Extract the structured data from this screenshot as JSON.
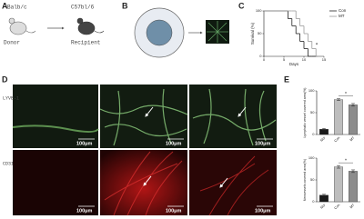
{
  "panels": {
    "a": {
      "label": "A",
      "donor_strain": "Balb/c",
      "recipient_strain": "C57bl/6",
      "donor": "Donor",
      "recipient": "Recipient"
    },
    "b": {
      "label": "B"
    },
    "c": {
      "label": "C"
    },
    "d": {
      "label": "D",
      "rows": [
        "LYVE-1",
        "CD31"
      ],
      "scale_bar": "100μm"
    },
    "e": {
      "label": "E"
    }
  },
  "chart_data": [
    {
      "type": "line",
      "step": true,
      "ylabel": "Survival (%)",
      "xlabel": "Days",
      "annotation": "*",
      "x": [
        0,
        6,
        7,
        8,
        9,
        10,
        11,
        12,
        13
      ],
      "series": [
        {
          "name": "Con",
          "color": "#222222",
          "values": [
            100,
            83,
            67,
            50,
            33,
            17,
            0,
            0,
            0
          ]
        },
        {
          "name": "MT",
          "color": "#9a9a9a",
          "values": [
            100,
            100,
            100,
            83,
            67,
            50,
            33,
            17,
            0
          ]
        }
      ],
      "xlim": [
        0,
        15
      ],
      "xticks": [
        0,
        5,
        10,
        15
      ],
      "ylim": [
        0,
        100
      ],
      "yticks": [
        0,
        50,
        100
      ],
      "legend": "upper-right"
    },
    {
      "type": "bar",
      "ylabel": "Lymphatic vessel covered area(%)",
      "annotation": "*",
      "categories": [
        "Nor",
        "Con",
        "MT"
      ],
      "values": [
        12,
        80,
        68
      ],
      "errors": [
        2,
        2,
        3
      ],
      "colors": [
        "#1a1a1a",
        "#bdbdbd",
        "#8c8c8c"
      ],
      "ylim": [
        0,
        100
      ],
      "yticks": [
        0,
        50,
        100
      ]
    },
    {
      "type": "bar",
      "ylabel": "Neovessels covered area(%)",
      "annotation": "*",
      "categories": [
        "Nor",
        "Con",
        "MT"
      ],
      "values": [
        15,
        80,
        70
      ],
      "errors": [
        2,
        3,
        3
      ],
      "colors": [
        "#1a1a1a",
        "#bdbdbd",
        "#8c8c8c"
      ],
      "ylim": [
        0,
        100
      ],
      "yticks": [
        0,
        50,
        100
      ]
    }
  ]
}
